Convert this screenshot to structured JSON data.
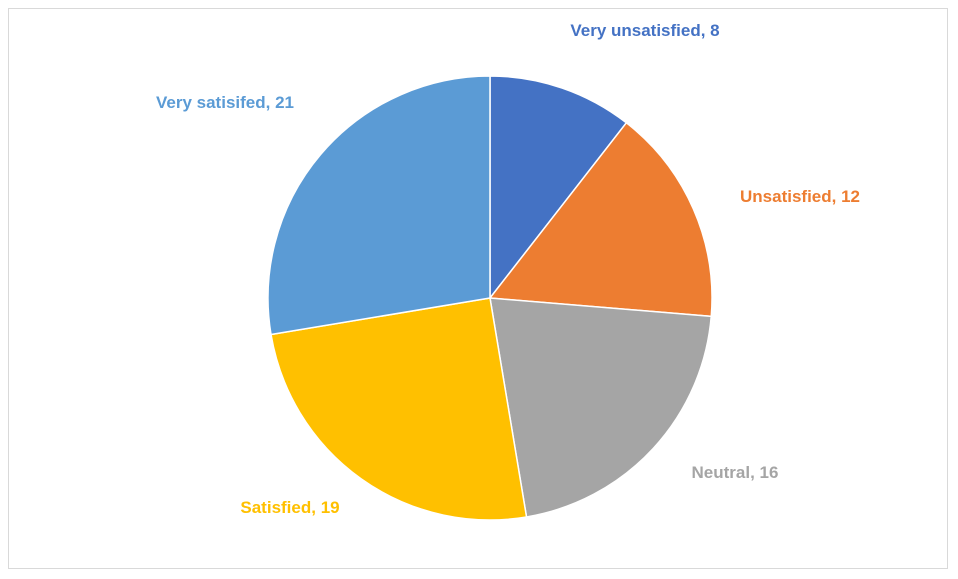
{
  "chart_data": {
    "type": "pie",
    "labels": [
      "Very unsatisfied, 8",
      "Unsatisfied, 12",
      "Neutral, 16",
      "Satisfied, 19",
      "Very satisifed, 21"
    ],
    "values": [
      8,
      12,
      16,
      19,
      21
    ],
    "colors": [
      "#4472c4",
      "#ed7d31",
      "#a5a5a5",
      "#ffc000",
      "#5b9bd5"
    ]
  }
}
